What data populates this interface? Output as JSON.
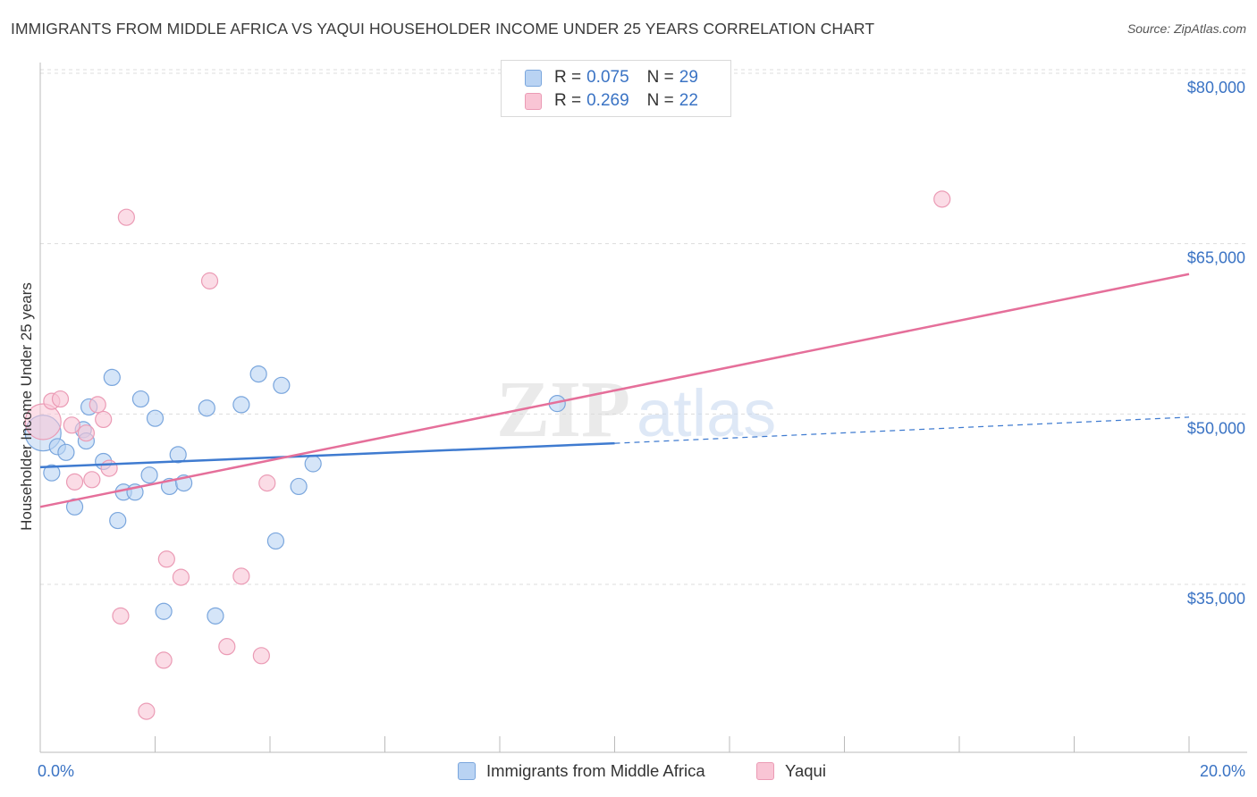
{
  "header": {
    "title": "IMMIGRANTS FROM MIDDLE AFRICA VS YAQUI HOUSEHOLDER INCOME UNDER 25 YEARS CORRELATION CHART",
    "source": "Source: ZipAtlas.com"
  },
  "legend_top": {
    "rows": [
      {
        "r_label": "R =",
        "r_value": "0.075",
        "n_label": "N =",
        "n_value": "29"
      },
      {
        "r_label": "R =",
        "r_value": "0.269",
        "n_label": "N =",
        "n_value": "22"
      }
    ]
  },
  "legend_bottom": {
    "items": [
      {
        "label": "Immigrants from Middle Africa"
      },
      {
        "label": "Yaqui"
      }
    ]
  },
  "colors": {
    "blue_fill": "#b9d3f3",
    "blue_stroke": "#7aa6dd",
    "blue_line": "#3f7bd0",
    "pink_fill": "#f9c5d5",
    "pink_stroke": "#eb9bb5",
    "pink_line": "#e56f9a",
    "axis_text": "#3a73c4",
    "grid": "#dcdcdc"
  },
  "chart_data": {
    "type": "scatter",
    "title": "IMMIGRANTS FROM MIDDLE AFRICA VS YAQUI HOUSEHOLDER INCOME UNDER 25 YEARS CORRELATION CHART",
    "xlabel": "",
    "ylabel": "Householder Income Under 25 years",
    "xlim": [
      0,
      20
    ],
    "ylim": [
      21000,
      82000
    ],
    "x_tick_labels": [
      "0.0%",
      "20.0%"
    ],
    "y_ticks": [
      35000,
      50000,
      65000,
      80000
    ],
    "y_tick_labels": [
      "$35,000",
      "$50,000",
      "$65,000",
      "$80,000"
    ],
    "watermark": "ZIPatlas",
    "series": [
      {
        "name": "Immigrants from Middle Africa",
        "color": "blue",
        "points": [
          {
            "x": 0.05,
            "y": 49500,
            "big": true
          },
          {
            "x": 0.2,
            "y": 46000
          },
          {
            "x": 0.3,
            "y": 48300
          },
          {
            "x": 0.45,
            "y": 47800
          },
          {
            "x": 0.6,
            "y": 43000
          },
          {
            "x": 0.75,
            "y": 49800
          },
          {
            "x": 0.8,
            "y": 48800
          },
          {
            "x": 0.85,
            "y": 51800
          },
          {
            "x": 1.1,
            "y": 47000
          },
          {
            "x": 1.25,
            "y": 54400
          },
          {
            "x": 1.35,
            "y": 41800
          },
          {
            "x": 1.45,
            "y": 44300
          },
          {
            "x": 1.65,
            "y": 44300
          },
          {
            "x": 1.75,
            "y": 52500
          },
          {
            "x": 1.9,
            "y": 45800
          },
          {
            "x": 2.0,
            "y": 50800
          },
          {
            "x": 2.15,
            "y": 33800
          },
          {
            "x": 2.25,
            "y": 44800
          },
          {
            "x": 2.4,
            "y": 47600
          },
          {
            "x": 2.5,
            "y": 45100
          },
          {
            "x": 2.9,
            "y": 51700
          },
          {
            "x": 3.05,
            "y": 33400
          },
          {
            "x": 3.5,
            "y": 52000
          },
          {
            "x": 3.8,
            "y": 54700
          },
          {
            "x": 4.1,
            "y": 40000
          },
          {
            "x": 4.2,
            "y": 53700
          },
          {
            "x": 4.5,
            "y": 44800
          },
          {
            "x": 4.75,
            "y": 46800
          },
          {
            "x": 9.0,
            "y": 52100
          }
        ],
        "trend": {
          "x0": 0,
          "y0": 46500,
          "x1": 10,
          "y1": 48600,
          "dash_x1": 20,
          "dash_y1": 50900
        }
      },
      {
        "name": "Yaqui",
        "color": "pink",
        "points": [
          {
            "x": 0.05,
            "y": 50500,
            "big": true
          },
          {
            "x": 0.2,
            "y": 52300
          },
          {
            "x": 0.35,
            "y": 52500
          },
          {
            "x": 0.55,
            "y": 50200
          },
          {
            "x": 0.6,
            "y": 45200
          },
          {
            "x": 0.8,
            "y": 49500
          },
          {
            "x": 0.9,
            "y": 45400
          },
          {
            "x": 1.0,
            "y": 52000
          },
          {
            "x": 1.1,
            "y": 50700
          },
          {
            "x": 1.2,
            "y": 46400
          },
          {
            "x": 1.4,
            "y": 33400
          },
          {
            "x": 1.5,
            "y": 68500
          },
          {
            "x": 1.85,
            "y": 25000
          },
          {
            "x": 2.15,
            "y": 29500
          },
          {
            "x": 2.2,
            "y": 38400
          },
          {
            "x": 2.45,
            "y": 36800
          },
          {
            "x": 2.95,
            "y": 62900
          },
          {
            "x": 3.25,
            "y": 30700
          },
          {
            "x": 3.5,
            "y": 36900
          },
          {
            "x": 3.85,
            "y": 29900
          },
          {
            "x": 3.95,
            "y": 45100
          },
          {
            "x": 15.7,
            "y": 70100
          }
        ],
        "trend": {
          "x0": 0,
          "y0": 43000,
          "x1": 20,
          "y1": 63500
        }
      }
    ]
  }
}
